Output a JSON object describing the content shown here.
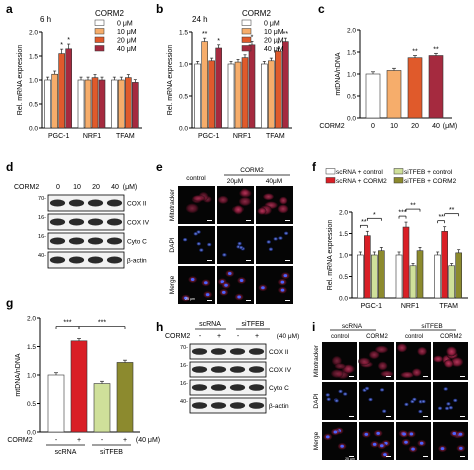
{
  "panels": {
    "a": {
      "letter": "a",
      "subtitle": "6 h"
    },
    "b": {
      "letter": "b",
      "subtitle": "24 h"
    },
    "c": {
      "letter": "c"
    },
    "d": {
      "letter": "d",
      "treatment": "CORM2",
      "doses": [
        "0",
        "10",
        "20",
        "40"
      ],
      "unit": "(μM)",
      "bands": [
        "COX II",
        "COX IV",
        "Cyto C",
        "β-actin"
      ],
      "markers": [
        "70-",
        "16-",
        "16-",
        "40-"
      ]
    },
    "e": {
      "letter": "e",
      "columns": [
        "control",
        "20μM",
        "40μM"
      ],
      "treatment": "CORM2",
      "rows": [
        "Mitotracker",
        "DAPI",
        "Merge"
      ],
      "scale": "25 μm"
    },
    "f": {
      "letter": "f"
    },
    "g": {
      "letter": "g"
    },
    "h": {
      "letter": "h",
      "groups": [
        "scRNA",
        "siTFEB"
      ],
      "treatment": "CORM2",
      "signs": [
        "-",
        "+",
        "-",
        "+"
      ],
      "unit": "(40 μM)",
      "bands": [
        "COX II",
        "COX IV",
        "Cyto C",
        "β-actin"
      ],
      "markers": [
        "70-",
        "16-",
        "16-",
        "40-"
      ]
    },
    "i": {
      "letter": "i",
      "groups": [
        "scRNA",
        "siTFEB"
      ],
      "columns": [
        "control",
        "CORM2",
        "control",
        "CORM2"
      ],
      "rows": [
        "Mitotracker",
        "DAPI",
        "Merge"
      ],
      "scale": "25 μm"
    }
  },
  "colors": {
    "c0": "#ffffff",
    "c10": "#f6ad6b",
    "c20": "#e05a2b",
    "c40": "#a52a3f",
    "scrna_ctrl": "#ffffff",
    "scrna_corm": "#d91f26",
    "si_ctrl": "#cfe09a",
    "si_corm": "#8c8a2e"
  },
  "chart_data": [
    {
      "panel": "a",
      "type": "bar",
      "categories": [
        "PGC-1",
        "NRF1",
        "TFAM"
      ],
      "series": [
        {
          "name": "0 μM",
          "values": [
            1.0,
            1.0,
            1.0
          ]
        },
        {
          "name": "10 μM",
          "values": [
            1.12,
            1.0,
            1.0
          ]
        },
        {
          "name": "20 μM",
          "values": [
            1.55,
            1.05,
            1.05
          ]
        },
        {
          "name": "40 μM",
          "values": [
            1.65,
            1.0,
            0.95
          ]
        }
      ],
      "ylabel": "Rel. mRNA expression",
      "ylim": [
        0,
        2.0
      ],
      "yticks": [
        "0.0",
        "0.5",
        "1.0",
        "1.5",
        "2.0"
      ],
      "legend_title": "CORM2",
      "significance": [
        "",
        "",
        "*",
        "*",
        "",
        "",
        "",
        "",
        "",
        "",
        "",
        ""
      ]
    },
    {
      "panel": "b",
      "type": "bar",
      "categories": [
        "PGC-1",
        "NRF1",
        "TFAM"
      ],
      "series": [
        {
          "name": "0 μM",
          "values": [
            1.0,
            1.0,
            1.0
          ]
        },
        {
          "name": "10 μM",
          "values": [
            1.35,
            1.03,
            1.05
          ]
        },
        {
          "name": "20 μM",
          "values": [
            1.05,
            1.1,
            1.2
          ]
        },
        {
          "name": "40 μM",
          "values": [
            1.25,
            1.3,
            1.35
          ]
        }
      ],
      "ylabel": "Rel. mRNA expression",
      "ylim": [
        0,
        1.5
      ],
      "yticks": [
        "0.0",
        "0.5",
        "1.0",
        "1.5"
      ],
      "legend_title": "CORM2",
      "significance": [
        "",
        "**",
        "",
        "*",
        "",
        "",
        "",
        "*",
        "",
        "",
        "*",
        "**"
      ]
    },
    {
      "panel": "c",
      "type": "bar",
      "categories": [
        "0",
        "10",
        "20",
        "40"
      ],
      "values": [
        1.0,
        1.08,
        1.37,
        1.42
      ],
      "ylabel": "mtDNA/nDNA",
      "ylim": [
        0,
        2.0
      ],
      "yticks": [
        "0.0",
        "0.5",
        "1.0",
        "1.5",
        "2.0"
      ],
      "xtitle": "CORM2",
      "xunit": "(μM)",
      "significance": [
        "",
        "",
        "**",
        "**"
      ]
    },
    {
      "panel": "f",
      "type": "bar",
      "categories": [
        "PGC-1",
        "NRF1",
        "TFAM"
      ],
      "series": [
        {
          "name": "scRNA + control",
          "values": [
            1.0,
            1.0,
            1.0
          ]
        },
        {
          "name": "scRNA + CORM2",
          "values": [
            1.45,
            1.65,
            1.55
          ]
        },
        {
          "name": "siTFEB + control",
          "values": [
            1.0,
            0.75,
            0.75
          ]
        },
        {
          "name": "siTFEB + CORM2",
          "values": [
            1.1,
            1.1,
            1.05
          ]
        }
      ],
      "ylabel": "Rel. mRNA expression",
      "ylim": [
        0,
        2.0
      ],
      "yticks": [
        "0.0",
        "0.5",
        "1.0",
        "1.5",
        "2.0"
      ],
      "brackets": [
        {
          "from": 0,
          "to": 1,
          "text": "**"
        },
        {
          "from": 1,
          "to": 3,
          "text": "*"
        },
        {
          "from": 4,
          "to": 5,
          "text": "***"
        },
        {
          "from": 5,
          "to": 7,
          "text": "**"
        },
        {
          "from": 8,
          "to": 9,
          "text": "**"
        },
        {
          "from": 9,
          "to": 11,
          "text": "**"
        }
      ]
    },
    {
      "panel": "g",
      "type": "bar",
      "categories": [
        "scRNA -",
        "scRNA +",
        "siTFEB -",
        "siTFEB +"
      ],
      "values": [
        1.0,
        1.6,
        0.85,
        1.22
      ],
      "ylabel": "mtDNA/nDNA",
      "ylim": [
        0,
        2.0
      ],
      "yticks": [
        "0.0",
        "0.5",
        "1.0",
        "1.5",
        "2.0"
      ],
      "signs": [
        "-",
        "+",
        "-",
        "+"
      ],
      "xtitle": "CORM2",
      "xunit": "(40 μM)",
      "groups": [
        "scRNA",
        "siTFEB"
      ],
      "brackets": [
        {
          "from": 0,
          "to": 1,
          "text": "***"
        },
        {
          "from": 1,
          "to": 3,
          "text": "***"
        }
      ]
    }
  ]
}
